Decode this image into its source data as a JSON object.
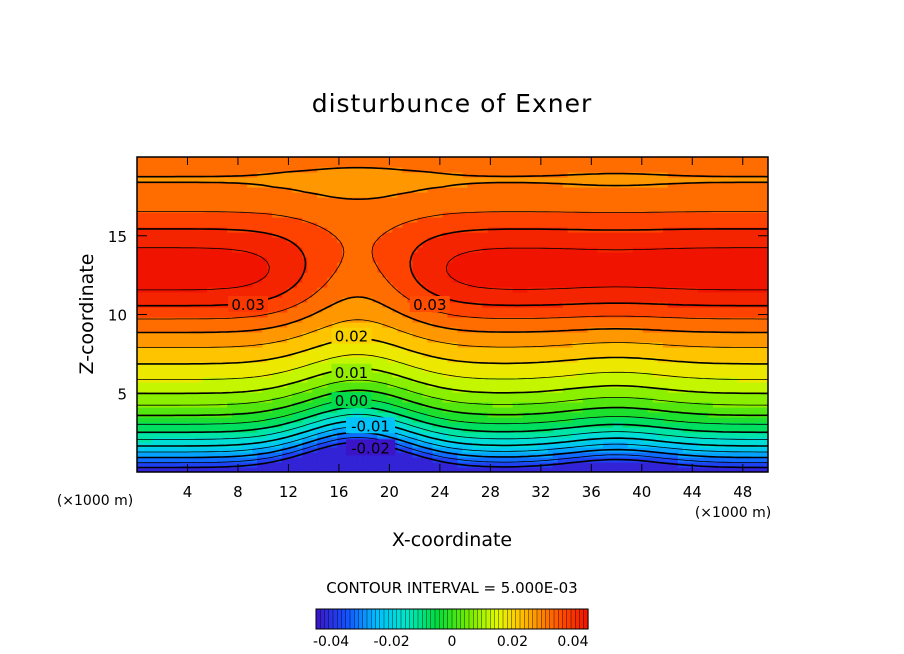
{
  "chart_data": {
    "type": "heatmap",
    "subtype": "filled-contour",
    "title": "disturbunce of Exner",
    "xlabel": "X-coordinate",
    "ylabel": "Z-coordinate",
    "x_unit_note": "(×1000 m)",
    "y_unit_note": "(×1000 m)",
    "xlim": [
      0,
      50
    ],
    "ylim": [
      0,
      20
    ],
    "x_ticks": [
      4,
      8,
      12,
      16,
      20,
      24,
      28,
      32,
      36,
      40,
      44,
      48
    ],
    "y_ticks": [
      5,
      10,
      15
    ],
    "contour_interval_text": "CONTOUR INTERVAL = 5.000E-03",
    "contour_interval": 0.005,
    "value_range": [
      -0.045,
      0.045
    ],
    "contour_labels": [
      {
        "text": "0.03",
        "x": 8.8,
        "z": 10.6
      },
      {
        "text": "0.03",
        "x": 23.2,
        "z": 10.6
      },
      {
        "text": "0.02",
        "x": 17.0,
        "z": 8.6
      },
      {
        "text": "0.01",
        "x": 17.0,
        "z": 6.3
      },
      {
        "text": "0.00",
        "x": 17.0,
        "z": 4.5
      },
      {
        "text": "-0.01",
        "x": 18.5,
        "z": 2.9
      },
      {
        "text": "-0.02",
        "x": 18.5,
        "z": 1.5
      }
    ],
    "colorbar": {
      "tick_labels": [
        "-0.04",
        "-0.02",
        "0",
        "0.02",
        "0.04"
      ],
      "tick_values": [
        -0.04,
        -0.02,
        0,
        0.02,
        0.04
      ]
    },
    "colormap": "rainbow (blue → cyan → green → yellow → orange → red)",
    "grid": false,
    "legend": "colorbar bottom-center"
  }
}
